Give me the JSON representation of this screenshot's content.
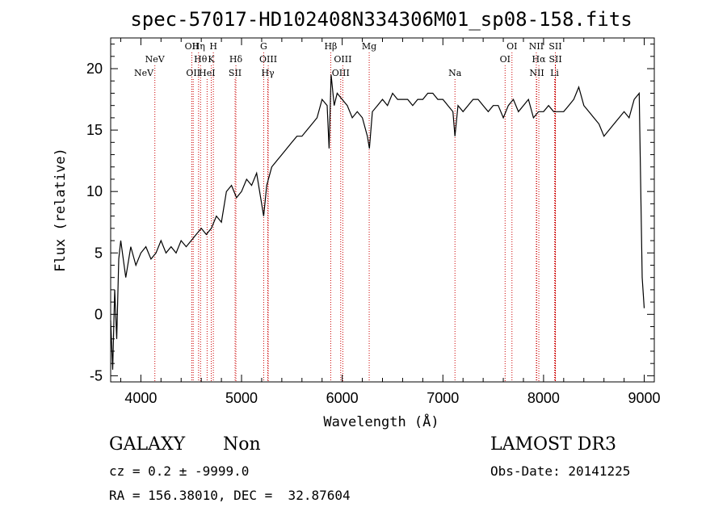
{
  "chart_data": {
    "type": "line",
    "title": "spec-57017-HD102408N334306M01_sp08-158.fits",
    "xlabel": "Wavelength (Å)",
    "ylabel": "Flux (relative)",
    "xlim": [
      3700,
      9100
    ],
    "ylim": [
      -5.5,
      22.5
    ],
    "xticks": [
      4000,
      5000,
      6000,
      7000,
      8000,
      9000
    ],
    "yticks": [
      -5,
      0,
      5,
      10,
      15,
      20
    ],
    "series": [
      {
        "name": "spectrum",
        "x": [
          3700,
          3720,
          3740,
          3760,
          3780,
          3800,
          3850,
          3900,
          3950,
          4000,
          4050,
          4100,
          4150,
          4200,
          4250,
          4300,
          4350,
          4400,
          4450,
          4500,
          4550,
          4600,
          4650,
          4700,
          4750,
          4800,
          4850,
          4900,
          4950,
          5000,
          5050,
          5100,
          5150,
          5200,
          5220,
          5250,
          5300,
          5350,
          5400,
          5450,
          5500,
          5550,
          5600,
          5650,
          5700,
          5750,
          5800,
          5850,
          5870,
          5890,
          5920,
          5950,
          6000,
          6050,
          6100,
          6150,
          6200,
          6250,
          6270,
          6300,
          6350,
          6400,
          6450,
          6500,
          6550,
          6600,
          6650,
          6700,
          6750,
          6800,
          6850,
          6900,
          6950,
          7000,
          7050,
          7100,
          7120,
          7150,
          7200,
          7250,
          7300,
          7350,
          7400,
          7450,
          7500,
          7550,
          7600,
          7650,
          7700,
          7750,
          7800,
          7850,
          7900,
          7950,
          8000,
          8050,
          8100,
          8150,
          8200,
          8250,
          8300,
          8350,
          8400,
          8450,
          8500,
          8550,
          8600,
          8650,
          8700,
          8750,
          8800,
          8850,
          8900,
          8950,
          8980,
          9000
        ],
        "values": [
          -0.5,
          -4.5,
          2.0,
          -2.0,
          4.5,
          6.0,
          3.0,
          5.5,
          4.0,
          5.0,
          5.5,
          4.5,
          5.0,
          6.0,
          5.0,
          5.5,
          5.0,
          6.0,
          5.5,
          6.0,
          6.5,
          7.0,
          6.5,
          7.0,
          8.0,
          7.5,
          10.0,
          10.5,
          9.5,
          10.0,
          11.0,
          10.5,
          11.5,
          9.0,
          8.0,
          10.5,
          12.0,
          12.5,
          13.0,
          13.5,
          14.0,
          14.5,
          14.5,
          15.0,
          15.5,
          16.0,
          17.5,
          17.0,
          13.5,
          19.5,
          17.0,
          18.0,
          17.5,
          17.0,
          16.0,
          16.5,
          16.0,
          14.5,
          13.5,
          16.5,
          17.0,
          17.5,
          17.0,
          18.0,
          17.5,
          17.5,
          17.5,
          17.0,
          17.5,
          17.5,
          18.0,
          18.0,
          17.5,
          17.5,
          17.0,
          16.5,
          14.5,
          17.0,
          16.5,
          17.0,
          17.5,
          17.5,
          17.0,
          16.5,
          17.0,
          17.0,
          16.0,
          17.0,
          17.5,
          16.5,
          17.0,
          17.5,
          16.0,
          16.5,
          16.5,
          17.0,
          16.5,
          16.5,
          16.5,
          17.0,
          17.5,
          18.5,
          17.0,
          16.5,
          16.0,
          15.5,
          14.5,
          15.0,
          15.5,
          16.0,
          16.5,
          16.0,
          17.5,
          18.0,
          3.0,
          0.5
        ]
      }
    ],
    "emission_lines": [
      {
        "name": "NeV",
        "wavelength": 3426,
        "row": 3
      },
      {
        "name": "NeV",
        "wavelength": 4139,
        "row": 2
      },
      {
        "name": "OII",
        "wavelength": 4506,
        "row": 1
      },
      {
        "name": "OII",
        "wavelength": 4520,
        "row": 3
      },
      {
        "name": "Hη",
        "wavelength": 4573,
        "row": 1
      },
      {
        "name": "Hθ",
        "wavelength": 4593,
        "row": 2
      },
      {
        "name": "HeI",
        "wavelength": 4658,
        "row": 3
      },
      {
        "name": "H",
        "wavelength": 4720,
        "row": 1
      },
      {
        "name": "K",
        "wavelength": 4699,
        "row": 2
      },
      {
        "name": "Hδ",
        "wavelength": 4944,
        "row": 2
      },
      {
        "name": "SII",
        "wavelength": 4936,
        "row": 3
      },
      {
        "name": "G",
        "wavelength": 5220,
        "row": 1
      },
      {
        "name": "OIII",
        "wavelength": 5265,
        "row": 2
      },
      {
        "name": "Hγ",
        "wavelength": 5261,
        "row": 3
      },
      {
        "name": "Hβ",
        "wavelength": 5886,
        "row": 1
      },
      {
        "name": "OIII",
        "wavelength": 6006,
        "row": 2
      },
      {
        "name": "OIII",
        "wavelength": 5985,
        "row": 3
      },
      {
        "name": "Mg",
        "wavelength": 6268,
        "row": 1
      },
      {
        "name": "Na",
        "wavelength": 7120,
        "row": 3
      },
      {
        "name": "OI",
        "wavelength": 7686,
        "row": 1
      },
      {
        "name": "OI",
        "wavelength": 7618,
        "row": 2
      },
      {
        "name": "NII",
        "wavelength": 7928,
        "row": 1
      },
      {
        "name": "Hα",
        "wavelength": 7953,
        "row": 2
      },
      {
        "name": "NII",
        "wavelength": 7933,
        "row": 3
      },
      {
        "name": "SII",
        "wavelength": 8117,
        "row": 1
      },
      {
        "name": "SII",
        "wavelength": 8118,
        "row": 2
      },
      {
        "name": "Li",
        "wavelength": 8109,
        "row": 3
      }
    ],
    "line_color": "#000000",
    "marker_color": "#cc0000"
  },
  "info": {
    "object_class": "GALAXY",
    "subclass": "Non",
    "survey": "LAMOST DR3",
    "cz_line": "cz = 0.2 ± -9999.0",
    "obs_date_line": "Obs-Date: 20141225",
    "coords_line": "RA = 156.38010, DEC =  32.87604"
  }
}
